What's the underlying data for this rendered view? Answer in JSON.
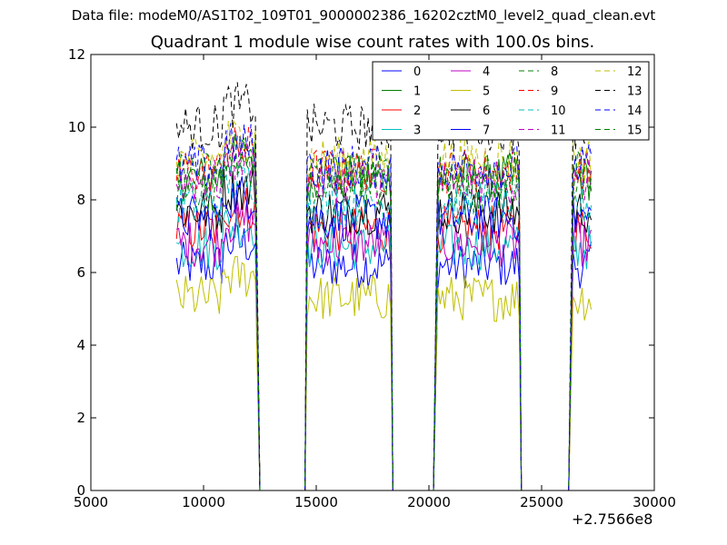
{
  "chart_data": {
    "type": "line",
    "suptitle": "Data file: modeM0/AS1T02_109T01_9000002386_16202cztM0_level2_quad_clean.evt",
    "title": "Quadrant 1 module wise count rates with 100.0s bins.",
    "x_offset_label": "+2.7566e8",
    "xlim": [
      5000,
      30000
    ],
    "ylim": [
      0,
      12
    ],
    "x_ticks": [
      "5000",
      "10000",
      "15000",
      "20000",
      "25000",
      "30000"
    ],
    "y_ticks": [
      "0",
      "2",
      "4",
      "6",
      "8",
      "10",
      "12"
    ],
    "grid": false,
    "legend_position": "top-right",
    "legend_columns": 4,
    "segments": [
      {
        "x_start": 8800,
        "x_end": 12300,
        "drop_to": 12500
      },
      {
        "x_start": 14600,
        "x_end": 18300,
        "rise_from": 14500,
        "drop_to": 18400
      },
      {
        "x_start": 20400,
        "x_end": 24000,
        "rise_from": 20200,
        "drop_to": 24100
      },
      {
        "x_start": 26400,
        "x_end": 27200,
        "rise_from": 26200
      }
    ],
    "series": [
      {
        "name": "0",
        "color": "#0000ff",
        "style": "solid",
        "level": 6.2
      },
      {
        "name": "1",
        "color": "#008000",
        "style": "solid",
        "level": 8.6
      },
      {
        "name": "2",
        "color": "#ff0000",
        "style": "solid",
        "level": 7.2
      },
      {
        "name": "3",
        "color": "#00bfbf",
        "style": "solid",
        "level": 6.7
      },
      {
        "name": "4",
        "color": "#bf00bf",
        "style": "solid",
        "level": 6.8
      },
      {
        "name": "5",
        "color": "#bfbf00",
        "style": "solid",
        "level": 5.3
      },
      {
        "name": "6",
        "color": "#000000",
        "style": "solid",
        "level": 7.7
      },
      {
        "name": "7",
        "color": "#0000ff",
        "style": "solid",
        "level": 7.5
      },
      {
        "name": "8",
        "color": "#008000",
        "style": "dashed",
        "level": 8.3
      },
      {
        "name": "9",
        "color": "#ff0000",
        "style": "dashed",
        "level": 8.8
      },
      {
        "name": "10",
        "color": "#00bfbf",
        "style": "dashed",
        "level": 7.9
      },
      {
        "name": "11",
        "color": "#bf00bf",
        "style": "dashed",
        "level": 8.5
      },
      {
        "name": "12",
        "color": "#bfbf00",
        "style": "dashed",
        "level": 9.1
      },
      {
        "name": "13",
        "color": "#000000",
        "style": "dashed",
        "level": 10.0
      },
      {
        "name": "14",
        "color": "#0000ff",
        "style": "dashed",
        "level": 8.9
      },
      {
        "name": "15",
        "color": "#008000",
        "style": "dashed",
        "level": 8.7
      }
    ]
  }
}
